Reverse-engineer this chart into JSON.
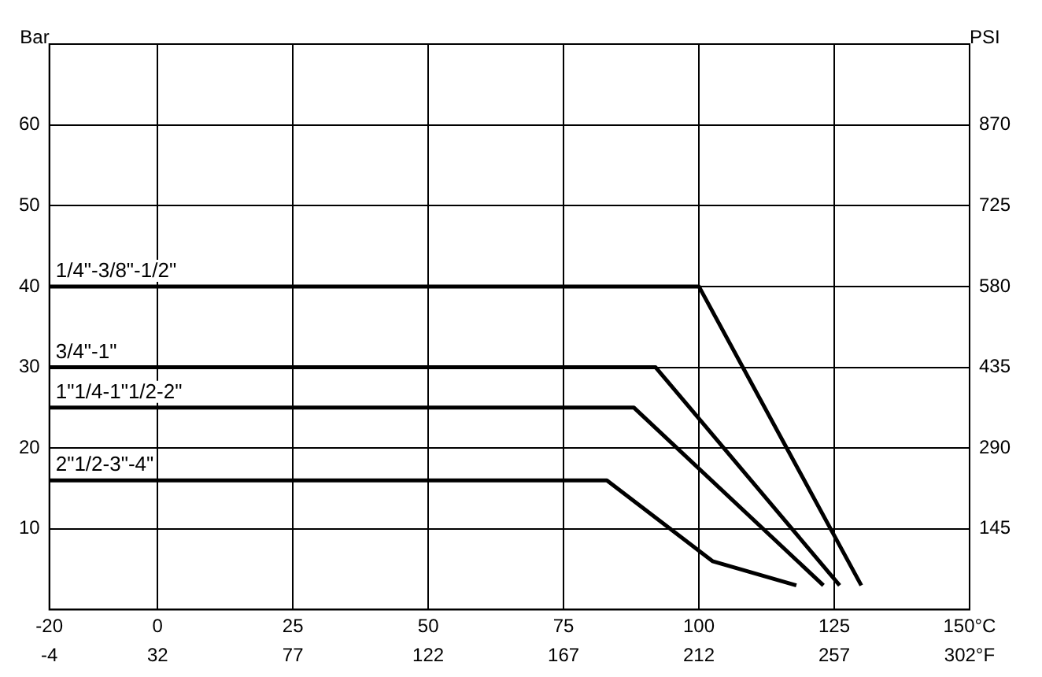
{
  "chart_data": {
    "type": "line",
    "ylabel": "Bar",
    "y2label": "PSI",
    "xlim": [
      -20,
      150
    ],
    "xticks": [
      -20,
      0,
      25,
      50,
      75,
      100,
      125,
      {
        "value": 150,
        "label": "150°C"
      }
    ],
    "x2lim": [
      -4,
      302
    ],
    "x2ticks": [
      -4,
      32,
      77,
      122,
      167,
      212,
      257,
      {
        "value": 302,
        "label": "302°F"
      }
    ],
    "ylim": [
      0,
      70
    ],
    "yticks": [
      10,
      20,
      30,
      40,
      50,
      60
    ],
    "y2lim": [
      0,
      1015
    ],
    "y2ticks": [
      145,
      290,
      435,
      580,
      725,
      870
    ],
    "grid": true,
    "legend": false,
    "marker": "none",
    "line_style": "solid",
    "series": [
      {
        "name": "1/4\"-3/8\"-1/2\"",
        "color": "#000000",
        "x": [
          -20,
          100,
          130
        ],
        "values": [
          40,
          40,
          3
        ]
      },
      {
        "name": "3/4\"-1\"",
        "color": "#000000",
        "x": [
          -20,
          92,
          126
        ],
        "values": [
          30,
          30,
          3
        ]
      },
      {
        "name": "1\"1/4-1\"1/2-2\"",
        "color": "#000000",
        "x": [
          -20,
          88,
          123
        ],
        "values": [
          25,
          25,
          3
        ]
      },
      {
        "name": "2\"1/2-3\"-4\"",
        "color": "#000000",
        "x": [
          -20,
          83,
          102.5,
          118
        ],
        "values": [
          16,
          16,
          6,
          3
        ]
      }
    ]
  }
}
